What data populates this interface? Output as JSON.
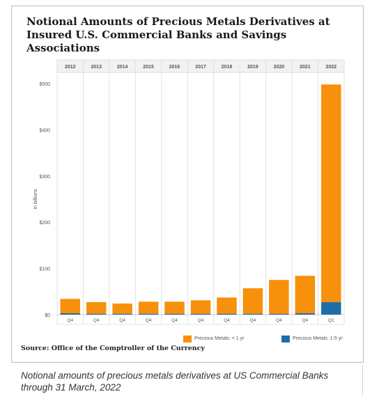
{
  "title": {
    "line1": "Notional Amounts of Precious Metals Derivatives at",
    "line2": "Insured U.S. Commercial Banks and Savings Associations"
  },
  "source": "Source: Office of the Comptroller of the Currency",
  "caption": "Notional amounts of precious metals derivatives at US Commercial Banks through 31 March, 2022",
  "colors": {
    "orange": "#f7900b",
    "blue": "#1f6ea8"
  },
  "chart_data": {
    "type": "bar",
    "stacked": true,
    "years": [
      "2012",
      "2013",
      "2014",
      "2015",
      "2016",
      "2017",
      "2018",
      "2019",
      "2020",
      "2021",
      "2022"
    ],
    "quarters": [
      "Q4",
      "Q4",
      "Q4",
      "Q4",
      "Q4",
      "Q4",
      "Q4",
      "Q4",
      "Q4",
      "Q4",
      "Q1"
    ],
    "ylabel": "in billions",
    "yticks": [
      "$0",
      "$100",
      "$200",
      "$300",
      "$400",
      "$500"
    ],
    "ylim": [
      0,
      500
    ],
    "series": [
      {
        "name": "Precious Metals: 1-5 yr",
        "color": "#1f6ea8",
        "values": [
          3,
          2,
          2,
          2,
          2,
          2,
          2,
          2,
          2,
          3,
          27
        ]
      },
      {
        "name": "Precious Metals: < 1 yr",
        "color": "#f7900b",
        "values": [
          31,
          25,
          22,
          26,
          26,
          29,
          35,
          55,
          73,
          81,
          471
        ]
      }
    ],
    "legend_position": "bottom-right",
    "grid": true
  }
}
